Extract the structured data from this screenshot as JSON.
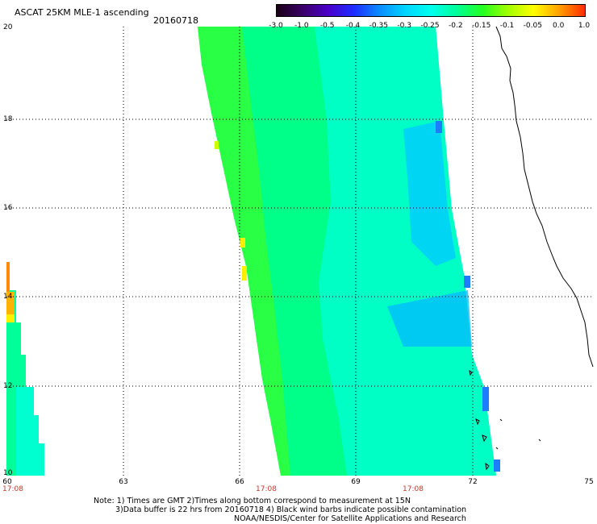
{
  "header": {
    "title": "ASCAT 25KM MLE-1 ascending",
    "date": "20160718"
  },
  "colorbar": {
    "labels": [
      "-3.0",
      "-1.0",
      "-0.5",
      "-0.4",
      "-0.35",
      "-0.3",
      "-0.25",
      "-0.2",
      "-0.15",
      "-0.1",
      "-0.05",
      "0.0",
      "1.0"
    ],
    "colors": [
      "#1a0014",
      "#3a0066",
      "#4a00c8",
      "#1e2cff",
      "#0a8cff",
      "#00d4ff",
      "#00ffee",
      "#00ff99",
      "#22ff22",
      "#a0ff00",
      "#ffff00",
      "#ffa000",
      "#ff2a00"
    ]
  },
  "map": {
    "y_ticks": [
      "20",
      "18",
      "16",
      "14",
      "12",
      "10"
    ],
    "x_ticks": [
      "60",
      "63",
      "66",
      "69",
      "72",
      "75"
    ],
    "time_labels": [
      "17:08",
      "17:08",
      "17:08"
    ],
    "coastline_color": "#000000"
  },
  "notes": {
    "line1": "Note: 1) Times are GMT 2)Times along bottom correspond to measurement at 15N",
    "line2": "3)Data buffer is 22 hrs from 20160718 4) Black wind barbs indicate possible contamination",
    "line3": "NOAA/NESDIS/Center for Satellite Applications and Research"
  }
}
